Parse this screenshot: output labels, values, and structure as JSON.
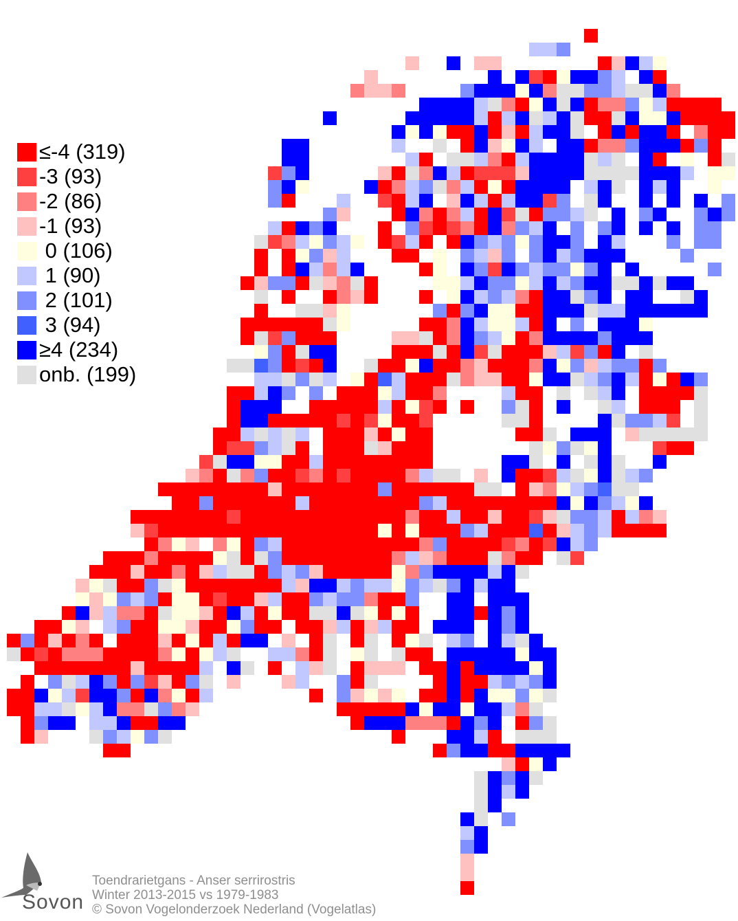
{
  "legend": [
    {
      "code": "R",
      "label": "≤-4 (319)",
      "color": "#ff0000"
    },
    {
      "code": "r",
      "label": "-3 (93)",
      "color": "#ff4040"
    },
    {
      "code": "p",
      "label": "-2 (86)",
      "color": "#ff8080"
    },
    {
      "code": "q",
      "label": "-1 (93)",
      "color": "#ffc0c0"
    },
    {
      "code": "y",
      "label": " 0 (106)",
      "color": "#ffffe0"
    },
    {
      "code": "a",
      "label": " 1 (90)",
      "color": "#c0c8ff"
    },
    {
      "code": "b",
      "label": " 2 (101)",
      "color": "#8090ff"
    },
    {
      "code": "c",
      "label": " 3 (94)",
      "color": "#4060ff"
    },
    {
      "code": "B",
      "label": "≥4 (234)",
      "color": "#0000ff"
    },
    {
      "code": "g",
      "label": "onb. (199)",
      "color": "#e0e0e0"
    }
  ],
  "caption": {
    "species": "Toendrarietgans - Anser serrirostris",
    "period": "Winter 2013-2015 vs 1979-1983",
    "copyright": "© Sovon Vogelonderzoek Nederland (Vogelatlas)"
  },
  "logo": {
    "text": "Sovon"
  },
  "grid_rows": [
    "42.R",
    "38.aab",
    "29.q2.B.qq7.RqBay",
    "26.q8.B.BrRyBBba.BR",
    "25.pqqp4.bBBByBpggbbaggBp",
    "30.BBBBagpRyBgBRppbyaRRRR",
    "23.B5.BBBBBaRaBgaBgRRgByyBRRRR",
    "28.ByByRRBRqRaBBg.RBRBBR.pRR",
    "20.BB6.a2.g.RBqyBa.BBRppbBBBRbR",
    "20.BB7.aR.ggapRaBBBBgag.BR.y.Rg",
    "19.rbB5.qRgpBaRrrrqBBBBggggBBBa.yy",
    "19.bBy4.BRpabgpaRyRBBBB.aBg.BaB2.y",
    "19.bR3.a2.rRaB.qBaRaBBrb.gB2.B.B.B.b",
    "23.bq3.RBpRpaRBrgRbbag.B.bB2.bBb",
    "19.aRBbB3.R.brRrpRBpbaB.b.bB.B.B.bb",
    "18.grpaybay.RraR.RBbabybBBb.Ba3.b.bb",
    "18.R.Rybqa3.RR.y.baqb.bBabBBB4.b",
    "18.R.RBapaB4.Ry.BbrBbabbybB.B5.b",
    "17.RqbbRgqpgR4.yyaBbbyaBabBBggBgBB",
    "18.g.R2.RpqR3.R.yBabapRBBgbB.BB2.gB",
    "18.R2.ggqy6.bRbByyRRBBBgaaBBBBBB",
    "17.RRRRRRgy5.RRpBayyaRB.b.BBBy",
    "17.RgrbRRR4.qqgRpBbayRpBBBBbBBB",
    "18.ybRgBB4.RRRgRBrgRRRqarbRB.g",
    "16.ggcbRrRB2.gRRyBRRpqRRRpBybqabbRb",
    "18.aagbga.yRcaRRRgpqqRRyBBgabBaRyRBb",
    "16.RRaBb.b.RRRyaRRp4.aRR.g.gaB.RRRRg",
    "16.RBBB2.RRRRRaRyrR.R2.bgR.B2.ga.RRR.g",
    "16.RBBRRRRRrRryRRr5.ggR4.Bgbbar.g",
    "15.RRagaga.RRRqRyRR6.RRg.BBB.qggggg",
    "15.RrrbagR.RRRgqRRR7.gybgyB3.rRR",
    "14.rgBByyRRaRRRRRRRR5.BBg.B.gBg2.B",
    "13.qpRgpbRRrpRrRRRRpagg.q.BRRragyBgab",
    "11.RRRRRRRRqRRRRRRRbRRRRRRgg.Rqpyabcgg",
    "12.RRbRRRRRRaRRRRRRRRbaRRRRRRRRByBbayB",
    "9.RRRRRRRrRRRRRRRRRRRRpRRaRRqRRrqgbbaRapq",
    "9.qrRRRRRRRRRRRRRRRRyRyRRRbaRRRcRqabaRRRR",
    "10.Rpyq.pyRbaRRRRRRRRRRpbRRRRrpRrBab",
    "7.RRRpRRRRygRgbRRRRRRRRpaqpRRRgpRR.gr",
    "6.RRRqRRpRqaggRbabqRRRRRypbBBBBaBg",
    "5.qygRRbgyRRRRRRRaqBBabaaybagbBaBB",
    "5.yqybabRyyRrRRqaRRbabbpRRb2.BB.BBB",
    "4.RBqappRgyyqRBaRyRRggBgyRyR2.BBRBbB",
    "2.RRyq.abRRyyqRRybRR.RRqaRqaRR.BBB.BbB",
    "RbRqRpR.RRRqRyRaRBB.q.Rg.Rg.Ryg.ab.BagB",
    "gRrRpppRRRRpyRyag2.aapRg.yg.gRR.BBBBByBB",
    "2.RRRRRRRqRRRRa.Bg.R.aqg.Rqqq.RRBRBBBByB",
    ".R.bgaBbRbrqRbg.q3.qa2.bRg4.RBRRababB",
    "RRByarBBbRBpyRa7.R.bqyqy.RRBRByybyg",
    "RRaagyaBppgbpq10.RRRRRByBByBBapg",
    ".RbBB.aaBRRBB12.RBBBpppRBbB.Rbg",
    ".Rq3.gbaybg16.R3.BBaR.ggg",
    "7.RR22.RbBBRRBBBB",
    "36.qRyB",
    "34.gBbBg",
    "34.gBaB",
    "34.gB",
    "33.Bg.b",
    "33.aB",
    "33.bB",
    "33.q",
    "33.q",
    "33.R"
  ]
}
